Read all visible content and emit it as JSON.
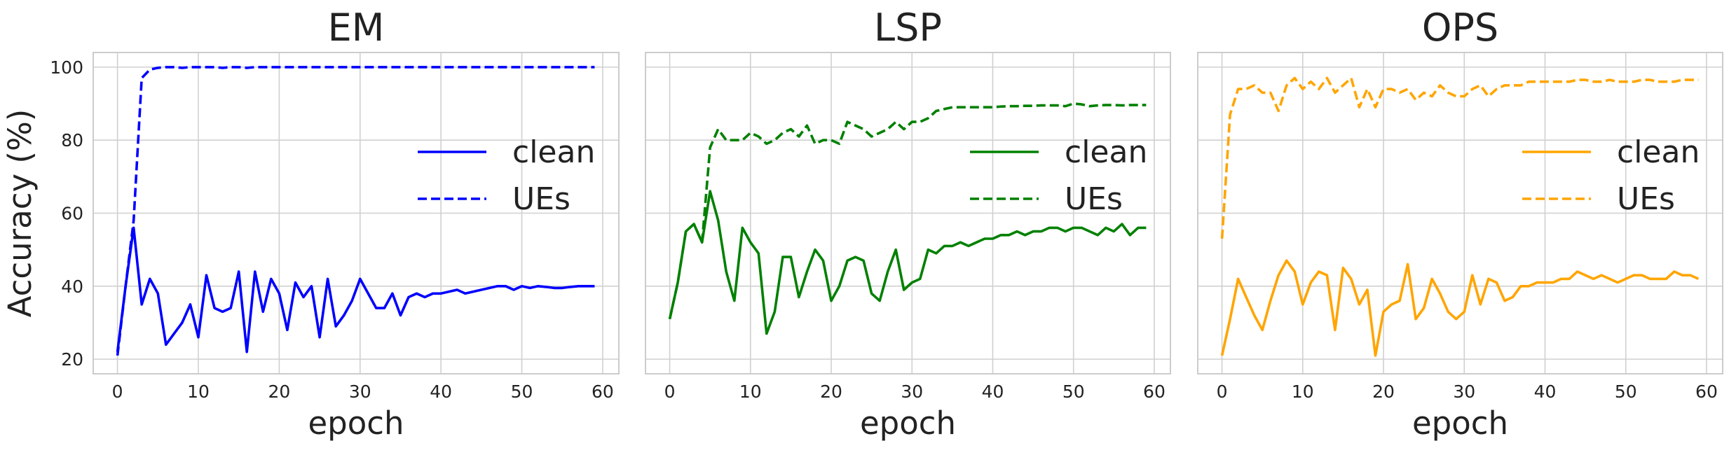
{
  "chart_data": [
    {
      "type": "line",
      "title": "EM",
      "xlabel": "epoch",
      "ylabel": "Accuracy (%)",
      "xlim": [
        -3,
        62
      ],
      "ylim": [
        16,
        104
      ],
      "xticks": [
        0,
        10,
        20,
        30,
        40,
        50,
        60
      ],
      "yticks": [
        20,
        40,
        60,
        80,
        100
      ],
      "grid": true,
      "legend_position": "center-right",
      "series": [
        {
          "name": "clean",
          "color": "#0000ff",
          "style": "solid",
          "x": [
            0,
            1,
            2,
            3,
            4,
            5,
            6,
            7,
            8,
            9,
            10,
            11,
            12,
            13,
            14,
            15,
            16,
            17,
            18,
            19,
            20,
            21,
            22,
            23,
            24,
            25,
            26,
            27,
            28,
            29,
            30,
            31,
            32,
            33,
            34,
            35,
            36,
            37,
            38,
            39,
            40,
            41,
            42,
            43,
            44,
            45,
            46,
            47,
            48,
            49,
            50,
            51,
            52,
            53,
            54,
            55,
            56,
            57,
            58,
            59
          ],
          "y": [
            22,
            40,
            56,
            35,
            42,
            38,
            24,
            27,
            30,
            35,
            26,
            43,
            34,
            33,
            34,
            44,
            22,
            44,
            33,
            42,
            38,
            28,
            41,
            37,
            40,
            26,
            42,
            29,
            32,
            36,
            42,
            38,
            34,
            34,
            38,
            32,
            37,
            38,
            37,
            38,
            38,
            38.5,
            39,
            38,
            38.5,
            39,
            39.5,
            40,
            40,
            39,
            40,
            39.5,
            40,
            39.8,
            39.5,
            39.5,
            39.8,
            40,
            40,
            40
          ]
        },
        {
          "name": "UEs",
          "color": "#0000ff",
          "style": "dashed",
          "x": [
            0,
            1,
            2,
            3,
            4,
            5,
            6,
            7,
            8,
            9,
            10,
            11,
            12,
            13,
            14,
            15,
            16,
            17,
            18,
            19,
            20,
            21,
            22,
            23,
            24,
            25,
            26,
            27,
            28,
            29,
            30,
            31,
            32,
            33,
            34,
            35,
            36,
            37,
            38,
            39,
            40,
            41,
            42,
            43,
            44,
            45,
            46,
            47,
            48,
            49,
            50,
            51,
            52,
            53,
            54,
            55,
            56,
            57,
            58,
            59
          ],
          "y": [
            21,
            40,
            58,
            97,
            99.3,
            99.8,
            100,
            100,
            99.8,
            100,
            100,
            100,
            100,
            99.8,
            100,
            100,
            99.8,
            100,
            100,
            100,
            100,
            100,
            100,
            100,
            100,
            100,
            100,
            100,
            100,
            100,
            100,
            100,
            100,
            100,
            100,
            100,
            100,
            100,
            100,
            100,
            100,
            100,
            100,
            100,
            100,
            100,
            100,
            100,
            100,
            100,
            100,
            100,
            100,
            100,
            100,
            100,
            100,
            100,
            100,
            100
          ]
        }
      ]
    },
    {
      "type": "line",
      "title": "LSP",
      "xlabel": "epoch",
      "ylabel": "",
      "xlim": [
        -3,
        62
      ],
      "ylim": [
        16,
        104
      ],
      "xticks": [
        0,
        10,
        20,
        30,
        40,
        50,
        60
      ],
      "yticks": [
        20,
        40,
        60,
        80,
        100
      ],
      "grid": true,
      "legend_position": "center-right",
      "series": [
        {
          "name": "clean",
          "color": "#008000",
          "style": "solid",
          "x": [
            0,
            1,
            2,
            3,
            4,
            5,
            6,
            7,
            8,
            9,
            10,
            11,
            12,
            13,
            14,
            15,
            16,
            17,
            18,
            19,
            20,
            21,
            22,
            23,
            24,
            25,
            26,
            27,
            28,
            29,
            30,
            31,
            32,
            33,
            34,
            35,
            36,
            37,
            38,
            39,
            40,
            41,
            42,
            43,
            44,
            45,
            46,
            47,
            48,
            49,
            50,
            51,
            52,
            53,
            54,
            55,
            56,
            57,
            58,
            59
          ],
          "y": [
            31,
            41,
            55,
            57,
            52,
            66,
            58,
            44,
            36,
            56,
            52,
            49,
            27,
            33,
            48,
            48,
            37,
            44,
            50,
            47,
            36,
            40,
            47,
            48,
            47,
            38,
            36,
            44,
            50,
            39,
            41,
            42,
            50,
            49,
            51,
            51,
            52,
            51,
            52,
            53,
            53,
            54,
            54,
            55,
            54,
            55,
            55,
            56,
            56,
            55,
            56,
            56,
            55,
            54,
            56,
            55,
            57,
            54,
            56,
            56
          ]
        },
        {
          "name": "UEs",
          "color": "#008000",
          "style": "dashed",
          "x": [
            0,
            1,
            2,
            3,
            4,
            5,
            6,
            7,
            8,
            9,
            10,
            11,
            12,
            13,
            14,
            15,
            16,
            17,
            18,
            19,
            20,
            21,
            22,
            23,
            24,
            25,
            26,
            27,
            28,
            29,
            30,
            31,
            32,
            33,
            34,
            35,
            36,
            37,
            38,
            39,
            40,
            41,
            42,
            43,
            44,
            45,
            46,
            47,
            48,
            49,
            50,
            51,
            52,
            53,
            54,
            55,
            56,
            57,
            58,
            59
          ],
          "y": [
            31,
            41,
            55,
            57,
            52,
            78,
            83,
            80,
            80,
            80,
            82,
            81,
            79,
            80,
            82,
            83,
            81,
            84,
            79,
            80,
            80,
            79,
            85,
            84,
            83,
            81,
            82,
            83,
            85,
            83,
            85,
            85,
            86,
            88,
            88.5,
            89,
            89,
            89,
            89,
            89,
            89,
            89.2,
            89.3,
            89.3,
            89.4,
            89.4,
            89.5,
            89.5,
            89.5,
            89.3,
            90,
            89.8,
            89.3,
            89.5,
            89.6,
            89.6,
            89.5,
            89.6,
            89.6,
            89.6
          ]
        }
      ]
    },
    {
      "type": "line",
      "title": "OPS",
      "xlabel": "epoch",
      "ylabel": "",
      "xlim": [
        -3,
        62
      ],
      "ylim": [
        16,
        104
      ],
      "xticks": [
        0,
        10,
        20,
        30,
        40,
        50,
        60
      ],
      "yticks": [
        20,
        40,
        60,
        80,
        100
      ],
      "grid": true,
      "legend_position": "center-right",
      "series": [
        {
          "name": "clean",
          "color": "#ffa500",
          "style": "solid",
          "x": [
            0,
            1,
            2,
            3,
            4,
            5,
            6,
            7,
            8,
            9,
            10,
            11,
            12,
            13,
            14,
            15,
            16,
            17,
            18,
            19,
            20,
            21,
            22,
            23,
            24,
            25,
            26,
            27,
            28,
            29,
            30,
            31,
            32,
            33,
            34,
            35,
            36,
            37,
            38,
            39,
            40,
            41,
            42,
            43,
            44,
            45,
            46,
            47,
            48,
            49,
            50,
            51,
            52,
            53,
            54,
            55,
            56,
            57,
            58,
            59
          ],
          "y": [
            21,
            31,
            42,
            37,
            32,
            28,
            36,
            43,
            47,
            44,
            35,
            41,
            44,
            43,
            28,
            45,
            42,
            35,
            39,
            21,
            33,
            35,
            36,
            46,
            31,
            34,
            42,
            38,
            33,
            31,
            33,
            43,
            35,
            42,
            41,
            36,
            37,
            40,
            40,
            41,
            41,
            41,
            42,
            42,
            44,
            43,
            42,
            43,
            42,
            41,
            42,
            43,
            43,
            42,
            42,
            42,
            44,
            43,
            43,
            42
          ]
        },
        {
          "name": "UEs",
          "color": "#ffa500",
          "style": "dashed",
          "x": [
            0,
            1,
            2,
            3,
            4,
            5,
            6,
            7,
            8,
            9,
            10,
            11,
            12,
            13,
            14,
            15,
            16,
            17,
            18,
            19,
            20,
            21,
            22,
            23,
            24,
            25,
            26,
            27,
            28,
            29,
            30,
            31,
            32,
            33,
            34,
            35,
            36,
            37,
            38,
            39,
            40,
            41,
            42,
            43,
            44,
            45,
            46,
            47,
            48,
            49,
            50,
            51,
            52,
            53,
            54,
            55,
            56,
            57,
            58,
            59
          ],
          "y": [
            53,
            87,
            94,
            94,
            95,
            93,
            93,
            88,
            95,
            97,
            94,
            96,
            94,
            97,
            93,
            95,
            97,
            89,
            94,
            89,
            94,
            94,
            93,
            94,
            91,
            93,
            92,
            95,
            93,
            92,
            92,
            94,
            95,
            92,
            94,
            95,
            95,
            95,
            96,
            96,
            96,
            96,
            96,
            96,
            96.5,
            96.5,
            96,
            96,
            96.5,
            96,
            96,
            96,
            96.5,
            96.5,
            96,
            96,
            96,
            96.5,
            96.5,
            96.5
          ]
        }
      ]
    }
  ]
}
